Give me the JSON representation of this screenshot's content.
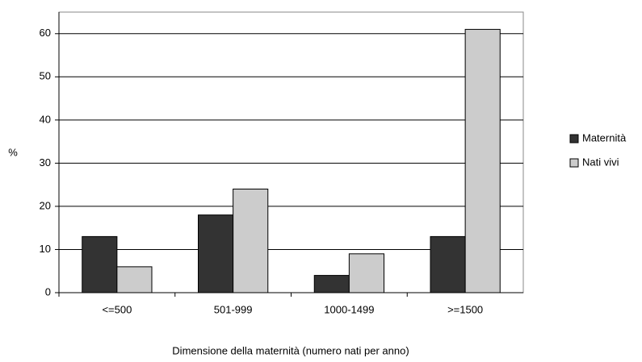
{
  "chart_data": {
    "type": "bar",
    "categories": [
      "<=500",
      "501-999",
      "1000-1499",
      ">=1500"
    ],
    "series": [
      {
        "name": "Maternità",
        "color": "#333333",
        "values": [
          13,
          18,
          4,
          13
        ]
      },
      {
        "name": "Nati vivi",
        "color": "#cccccc",
        "values": [
          6,
          24,
          9,
          61
        ]
      }
    ],
    "ylim": [
      0,
      65
    ],
    "yticks": [
      0,
      10,
      20,
      30,
      40,
      50,
      60
    ],
    "y_label": "%",
    "x_label": "Dimensione della maternità (numero nati  per anno)",
    "grid": true,
    "legend": "right"
  }
}
